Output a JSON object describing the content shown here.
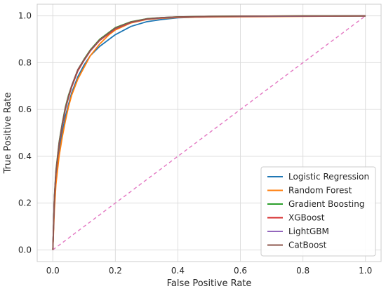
{
  "chart_data": {
    "type": "line",
    "title": "",
    "xlabel": "False Positive Rate",
    "ylabel": "True Positive Rate",
    "xlim": [
      -0.05,
      1.05
    ],
    "ylim": [
      -0.05,
      1.05
    ],
    "xticks": [
      "0.0",
      "0.2",
      "0.4",
      "0.6",
      "0.8",
      "1.0"
    ],
    "yticks": [
      "0.0",
      "0.2",
      "0.4",
      "0.6",
      "0.8",
      "1.0"
    ],
    "grid": true,
    "legend_position": "lower-right",
    "series": [
      {
        "name": "Logistic Regression",
        "color": "#1f77b4",
        "x": [
          0,
          0.005,
          0.01,
          0.02,
          0.03,
          0.04,
          0.05,
          0.06,
          0.08,
          0.1,
          0.12,
          0.15,
          0.18,
          0.2,
          0.25,
          0.3,
          0.35,
          0.4,
          0.5,
          0.6,
          0.8,
          1.0
        ],
        "y": [
          0,
          0.22,
          0.32,
          0.42,
          0.5,
          0.57,
          0.62,
          0.67,
          0.74,
          0.79,
          0.83,
          0.87,
          0.9,
          0.92,
          0.955,
          0.975,
          0.985,
          0.992,
          0.996,
          0.998,
          0.999,
          1.0
        ]
      },
      {
        "name": "Random Forest",
        "color": "#ff7f0e",
        "x": [
          0,
          0.005,
          0.01,
          0.02,
          0.03,
          0.04,
          0.05,
          0.06,
          0.08,
          0.1,
          0.12,
          0.15,
          0.18,
          0.2,
          0.25,
          0.3,
          0.35,
          0.4,
          0.5,
          0.6,
          0.8,
          1.0
        ],
        "y": [
          0,
          0.17,
          0.28,
          0.4,
          0.48,
          0.55,
          0.61,
          0.66,
          0.73,
          0.78,
          0.83,
          0.88,
          0.92,
          0.94,
          0.97,
          0.985,
          0.99,
          0.993,
          0.995,
          0.996,
          0.998,
          1.0
        ]
      },
      {
        "name": "Gradient Boosting",
        "color": "#2ca02c",
        "x": [
          0,
          0.005,
          0.01,
          0.02,
          0.03,
          0.04,
          0.05,
          0.06,
          0.08,
          0.1,
          0.12,
          0.15,
          0.18,
          0.2,
          0.25,
          0.3,
          0.35,
          0.4,
          0.5,
          0.6,
          0.8,
          1.0
        ],
        "y": [
          0,
          0.23,
          0.34,
          0.46,
          0.54,
          0.61,
          0.66,
          0.7,
          0.77,
          0.815,
          0.855,
          0.9,
          0.93,
          0.95,
          0.975,
          0.988,
          0.993,
          0.996,
          0.998,
          0.999,
          1.0,
          1.0
        ]
      },
      {
        "name": "XGBoost",
        "color": "#d62728",
        "x": [
          0,
          0.005,
          0.01,
          0.02,
          0.03,
          0.04,
          0.05,
          0.06,
          0.08,
          0.1,
          0.12,
          0.15,
          0.18,
          0.2,
          0.25,
          0.3,
          0.35,
          0.4,
          0.5,
          0.6,
          0.8,
          1.0
        ],
        "y": [
          0,
          0.22,
          0.33,
          0.45,
          0.53,
          0.6,
          0.65,
          0.695,
          0.765,
          0.81,
          0.85,
          0.895,
          0.925,
          0.945,
          0.972,
          0.986,
          0.992,
          0.995,
          0.997,
          0.998,
          0.999,
          1.0
        ]
      },
      {
        "name": "LightGBM",
        "color": "#9467bd",
        "x": [
          0,
          0.005,
          0.01,
          0.02,
          0.03,
          0.04,
          0.05,
          0.06,
          0.08,
          0.1,
          0.12,
          0.15,
          0.18,
          0.2,
          0.25,
          0.3,
          0.35,
          0.4,
          0.5,
          0.6,
          0.8,
          1.0
        ],
        "y": [
          0,
          0.22,
          0.33,
          0.455,
          0.535,
          0.605,
          0.655,
          0.7,
          0.77,
          0.812,
          0.852,
          0.897,
          0.927,
          0.947,
          0.973,
          0.987,
          0.992,
          0.995,
          0.997,
          0.998,
          0.999,
          1.0
        ]
      },
      {
        "name": "CatBoost",
        "color": "#8c564b",
        "x": [
          0,
          0.005,
          0.01,
          0.02,
          0.03,
          0.04,
          0.05,
          0.06,
          0.08,
          0.1,
          0.12,
          0.15,
          0.18,
          0.2,
          0.25,
          0.3,
          0.35,
          0.4,
          0.5,
          0.6,
          0.8,
          1.0
        ],
        "y": [
          0,
          0.22,
          0.33,
          0.455,
          0.535,
          0.605,
          0.655,
          0.7,
          0.77,
          0.813,
          0.853,
          0.898,
          0.928,
          0.948,
          0.974,
          0.987,
          0.993,
          0.996,
          0.998,
          0.999,
          1.0,
          1.0
        ]
      }
    ],
    "reference_line": {
      "x": [
        0,
        1
      ],
      "y": [
        0,
        1
      ],
      "color": "#e377c2",
      "style": "dashed"
    }
  }
}
